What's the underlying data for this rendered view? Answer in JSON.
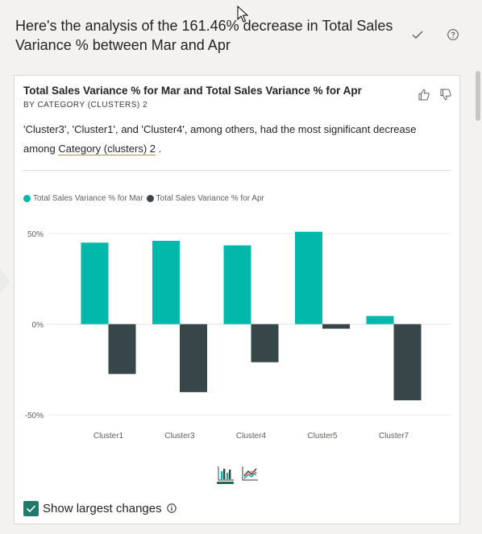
{
  "header": {
    "title": "Here's the analysis of the 161.46% decrease in Total Sales Variance % between Mar and Apr",
    "icons": [
      "check-icon",
      "help-icon"
    ]
  },
  "card": {
    "title": "Total Sales Variance % for Mar and Total Sales Variance % for Apr",
    "subtitle": "BY CATEGORY (CLUSTERS) 2",
    "description_prefix": "'Cluster3', 'Cluster1', and 'Cluster4', among others, had the most significant decrease among ",
    "description_link": "Category (clusters) 2",
    "description_suffix": " .",
    "icons": [
      "thumbs-up-icon",
      "thumbs-down-icon"
    ]
  },
  "chart_data": {
    "type": "bar",
    "categories": [
      "Cluster1",
      "Cluster3",
      "Cluster4",
      "Cluster5",
      "Cluster7"
    ],
    "series": [
      {
        "name": "Total Sales Variance % for Mar",
        "color": "#01b8aa",
        "values": [
          45,
          46,
          43.5,
          51,
          4.5
        ]
      },
      {
        "name": "Total Sales Variance % for Apr",
        "color": "#374649",
        "values": [
          -27.5,
          -37.5,
          -21,
          -2.5,
          -42
        ]
      }
    ],
    "yticks": [
      "50%",
      "0%",
      "-50%"
    ],
    "ytick_values": [
      50,
      0,
      -50
    ],
    "ylim": [
      -50,
      50
    ],
    "grid": true,
    "legend_position": "top-left"
  },
  "controls": {
    "show_largest_changes_label": "Show largest changes",
    "show_largest_changes_checked": true,
    "chart_toggles": [
      "bar-chart-icon",
      "line-chart-icon"
    ]
  },
  "colors": {
    "accent": "#1e7a6c",
    "series_mar": "#01b8aa",
    "series_apr": "#374649"
  }
}
